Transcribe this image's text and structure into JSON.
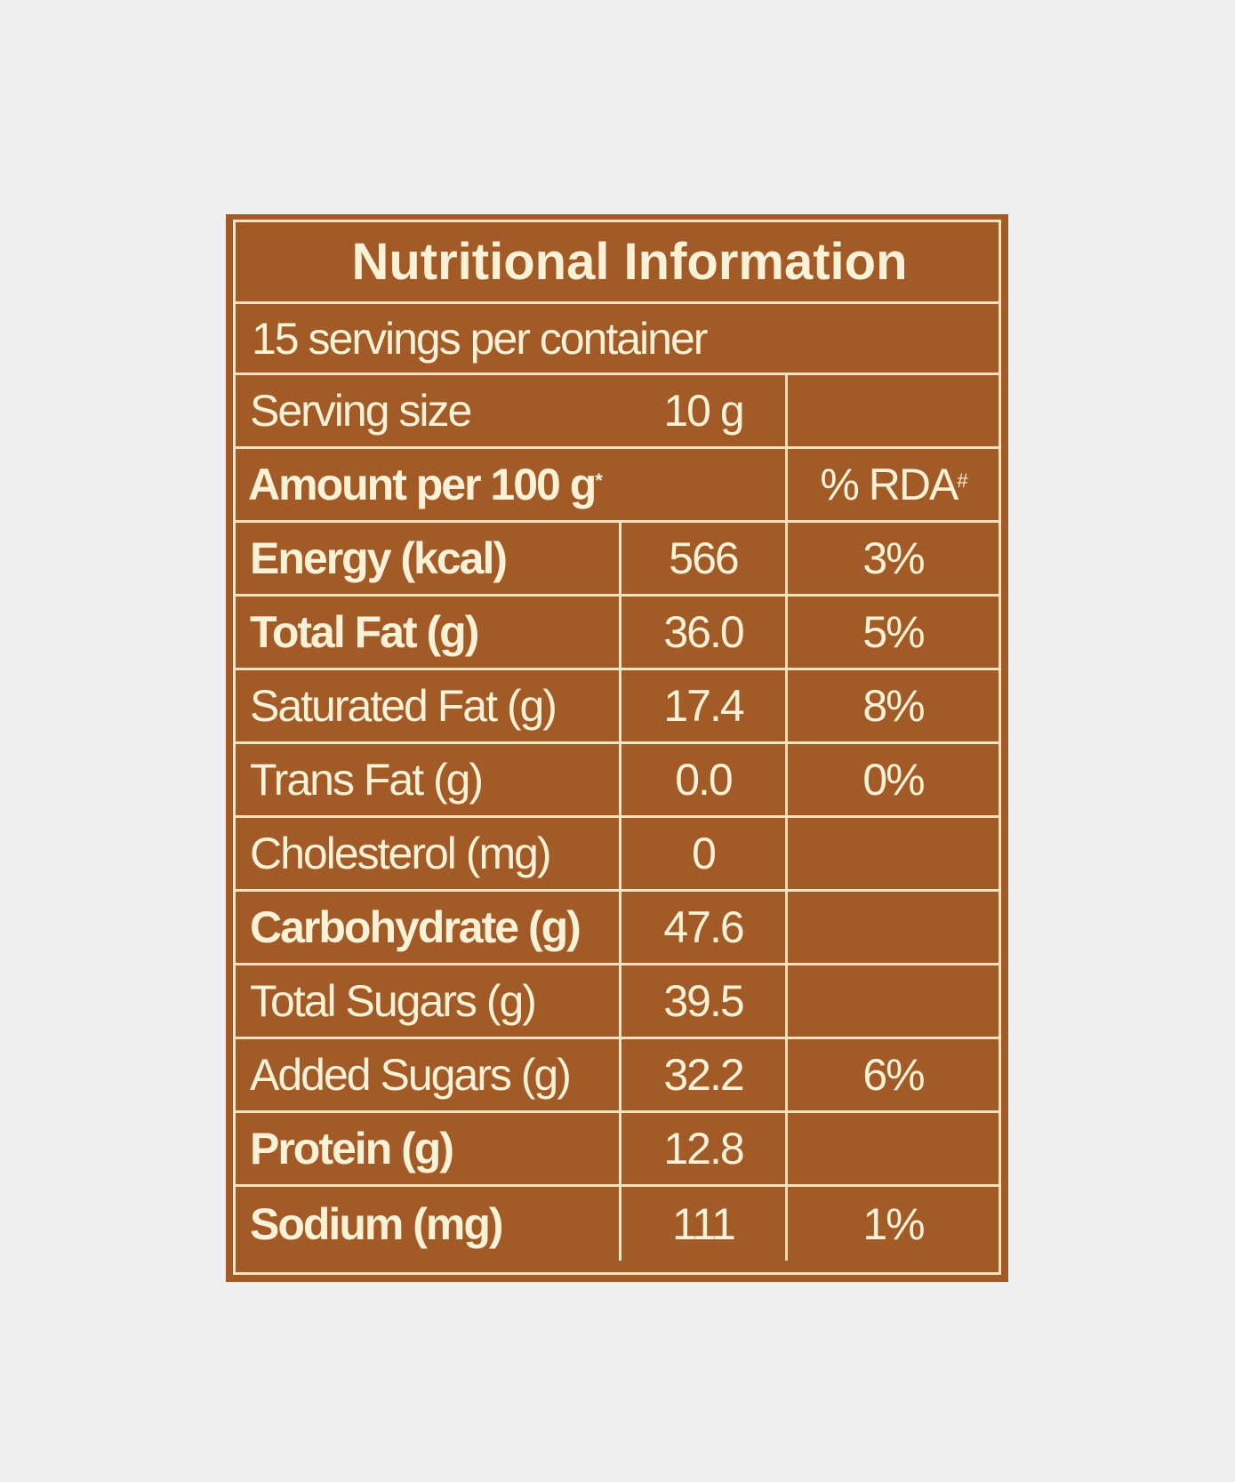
{
  "label": {
    "title": "Nutritional Information",
    "servings_per_container": "15 servings per container",
    "serving_size_label": "Serving size",
    "serving_size_value": "10 g",
    "amount_header": "Amount per 100 g",
    "amount_header_mark": "*",
    "rda_header": "% RDA",
    "rda_header_mark": "#",
    "rows": [
      {
        "name": "Energy (kcal)",
        "value": "566",
        "rda": "3%",
        "bold": true
      },
      {
        "name": "Total Fat (g)",
        "value": "36.0",
        "rda": "5%",
        "bold": true
      },
      {
        "name": "Saturated Fat (g)",
        "value": "17.4",
        "rda": "8%",
        "bold": false
      },
      {
        "name": "Trans Fat (g)",
        "value": "0.0",
        "rda": "0%",
        "bold": false
      },
      {
        "name": "Cholesterol (mg)",
        "value": "0",
        "rda": "",
        "bold": false
      },
      {
        "name": "Carbohydrate (g)",
        "value": "47.6",
        "rda": "",
        "bold": true
      },
      {
        "name": "Total Sugars (g)",
        "value": "39.5",
        "rda": "",
        "bold": false
      },
      {
        "name": "Added Sugars (g)",
        "value": "32.2",
        "rda": "6%",
        "bold": false
      },
      {
        "name": "Protein (g)",
        "value": "12.8",
        "rda": "",
        "bold": true
      },
      {
        "name": "Sodium (mg)",
        "value": "111",
        "rda": "1%",
        "bold": true
      }
    ]
  },
  "colors": {
    "background": "#f0f0f0",
    "panel": "#a25b27",
    "text": "#fbf1d6",
    "rule": "#f3e3bf"
  }
}
